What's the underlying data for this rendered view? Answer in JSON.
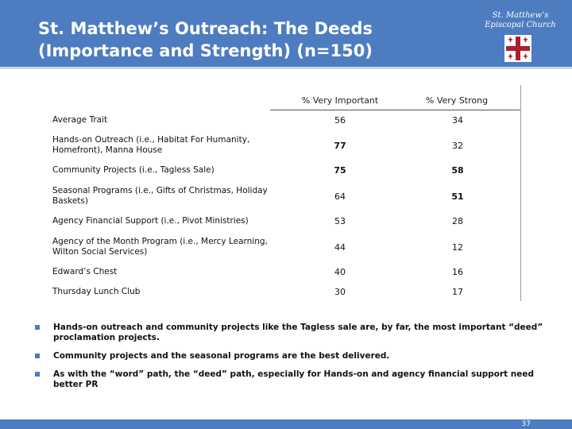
{
  "header": {
    "title": "St. Matthew’s Outreach: The Deeds\n(Importance and Strength) (n=150)",
    "logo_text": "St. Matthew’s\nEpiscopal Church",
    "logo_icon": "cross-icon",
    "accent_color": "#4d7cc0"
  },
  "table": {
    "columns": [
      "% Very Important",
      "% Very Strong"
    ],
    "rows": [
      {
        "label": "Average Trait",
        "important": "56",
        "strong": "34"
      },
      {
        "label": "Hands-on Outreach (i.e., Habitat For Humanity, Homefront), Manna House",
        "important": "77",
        "strong": "32"
      },
      {
        "label": "Community Projects (i.e., Tagless Sale)",
        "important": "75",
        "strong": "58"
      },
      {
        "label": "Seasonal Programs (i.e., Gifts of Christmas, Holiday Baskets)",
        "important": "64",
        "strong": "51"
      },
      {
        "label": "Agency Financial Support (i.e., Pivot Ministries)",
        "important": "53",
        "strong": "28"
      },
      {
        "label": "Agency of the Month Program (i.e., Mercy Learning, Wilton Social Services)",
        "important": "44",
        "strong": "12"
      },
      {
        "label": "Edward’s Chest",
        "important": "40",
        "strong": "16"
      },
      {
        "label": "Thursday Lunch Club",
        "important": "30",
        "strong": "17"
      }
    ]
  },
  "bullets": [
    "Hands-on outreach and community projects like the Tagless sale are, by far, the most important “deed” proclamation projects.",
    "Community projects and the seasonal programs are the best delivered.",
    "As with the “word” path, the “deed” path, especially for Hands-on and agency financial support need better PR"
  ],
  "footer": {
    "page_number": "37"
  }
}
